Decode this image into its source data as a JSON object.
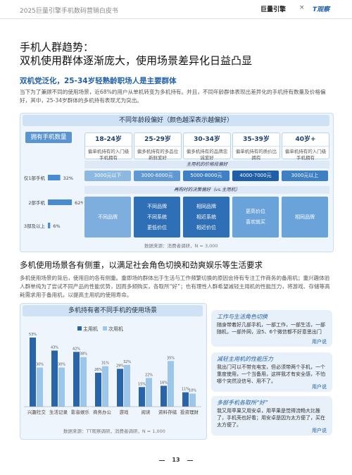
{
  "header": {
    "title": "2025巨量引擎手机数码营销白皮书",
    "logo1": "巨量引擎",
    "sep": "×",
    "logo2": "T观察"
  },
  "title": {
    "line1": "手机人群趋势：",
    "line2": "双机使用群体逐渐庞大，使用场景差异化日益凸显"
  },
  "section1": {
    "subtitle": "双机党泛化，25-34岁轻熟龄职场人是主要群体",
    "text": "当下为了兼顾不同的使用场景，近68%的用户从单机转变为多机持有。并且，不同年龄群体表现出差异化的手机持有数量及价格偏好，其中，25-34岁群体的多机持有表现尤为突出。",
    "box_title": "不同年龄段偏好（颜色越深表示越偏好）",
    "price_label": "主用机的价格段偏好",
    "decision_label": "再购时的决策偏好（vs.主用机）",
    "columns": [
      {
        "age": "18-24岁",
        "desc": "偏单机持有的入门级手机拥有",
        "price": "3000元以下",
        "price_color": "#8db8e2",
        "decision": [
          "不同品牌"
        ],
        "decision_color": "#7eaedd"
      },
      {
        "age": "25-29岁",
        "desc": "偏多机持有的多品位新鲜爱好",
        "price": "3000-6000元",
        "price_color": "#5f98d3",
        "decision": [
          "不同品牌",
          "不同系统",
          "更低价位"
        ],
        "decision_color": "#2f6fb6"
      },
      {
        "age": "30-34岁",
        "desc": "偏多机持有的品牌忠诚爱好",
        "price": "5000-8000元",
        "price_color": "#3f7fc4",
        "decision": [
          "相同品牌",
          "相近系统",
          "相近价位"
        ],
        "decision_color": "#2f6fb6"
      },
      {
        "age": "35-39岁",
        "desc": "偏单机持有的质价比拥有",
        "price": "4000-7000元",
        "price_color": "#1f5fa8",
        "decision": [
          "更高价位",
          "喜欢就买"
        ],
        "decision_color": "#6aa2da"
      },
      {
        "age": "40岁+",
        "desc": "偏单机持有的入门级手机拥有",
        "price": "3000元以上",
        "price_color": "#3f7fc4",
        "decision": [
          "相同品牌"
        ],
        "decision_color": "#6aa2da"
      }
    ],
    "source": "数据来源：消费者调研，N = 3,000"
  },
  "section2": {
    "heading": "多机使用场景各有侧重，以满足社会角色切换和劲爽娱乐等生活要求",
    "text": "多机使用场景的背后，使用目的各有侧重。重即场的群体出于生活与工作频繁切换的原因会持有专注工作商务的备用机；重兴趣体验人群单纯为了尝试不同产品的性能优势，因而多频购买，各取所“好”；也有理性人群希望减轻主用机的性能压力，将游戏、存储等高耗需求用于备用机，以提高主用机的使用寿命。",
    "source": "数据来源：TT观察调研，消费者调研，N = 1,000",
    "quotes": [
      {
        "title": "工作与生活角色切换",
        "text": "随身带着好几部手机，一部工作，一部生活，一部随机，一部外网，没5、6个微信都不好意思出门",
        "by": "用户说"
      },
      {
        "title": "减轻主用机的性能压力",
        "text": "我出门可以不带充电宝，但必须带两个手机，一个重度使用，一个当备用，这样我才有安全感，不怕哪个突然没信号、用不了。",
        "by": "用户说"
      },
      {
        "title": "多部手机各取所“好”",
        "text": "我又用苹果又用安卓，用苹果是觉得流畅大比推了，手机壳也好看；用安卓是因为太方便了，买在太方便了。",
        "by": "用户说"
      }
    ]
  },
  "page_number": "13",
  "chart_data": [
    {
      "type": "hbar",
      "title": "拥有手机数量",
      "categories": [
        "仅1部手机",
        "2部手机",
        "3部及以上"
      ],
      "values": [
        32,
        62,
        6
      ],
      "value_labels": [
        "32%",
        "62%",
        "6%"
      ],
      "color": "#4a8ad0"
    },
    {
      "type": "bar",
      "title": "多机持有者不同手机的使用场景",
      "categories": [
        "兴趣社交",
        "生活记录",
        "影音娱乐",
        "商务办公",
        "游戏",
        "阅读",
        "资料存储",
        "投资理财"
      ],
      "series": [
        {
          "name": "主用机",
          "color": "#2a64a8",
          "values": [
            53,
            43,
            42,
            26,
            29,
            15,
            16,
            11
          ],
          "value_labels": [
            "53%",
            "43%",
            "42%",
            "26%",
            "29%",
            "15%",
            "16%",
            "11%"
          ]
        },
        {
          "name": "次用机",
          "color": "#9cc7ea",
          "values": [
            30,
            30,
            38,
            31,
            32,
            22,
            35,
            10
          ],
          "value_labels": [
            "30%",
            "30%",
            "38%",
            "31%",
            "32%",
            "22%",
            "35%",
            "10%"
          ]
        }
      ]
    }
  ]
}
